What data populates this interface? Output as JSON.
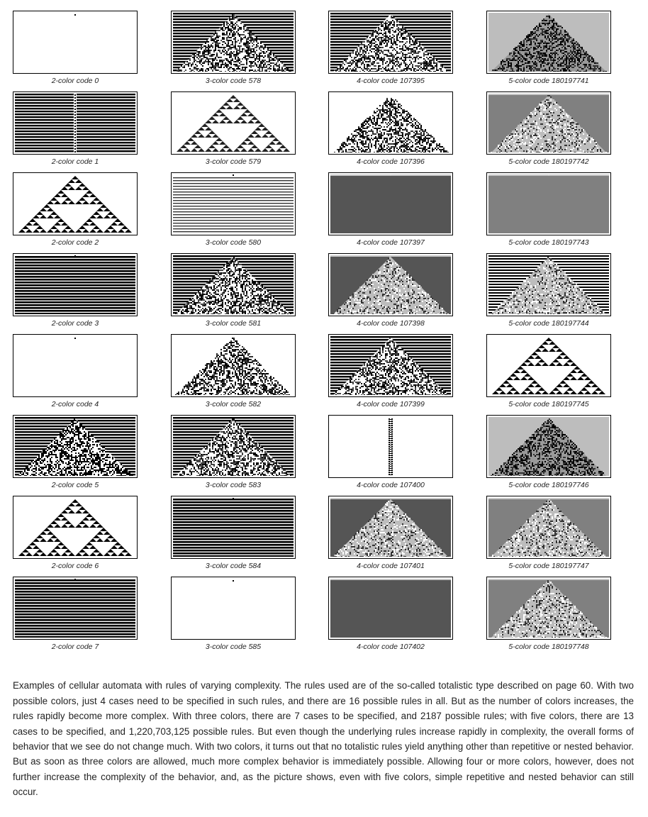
{
  "figure": {
    "columns": [
      {
        "colors": 2,
        "panels": [
          {
            "label": "2-color code 0",
            "pattern": "dot",
            "background": "white"
          },
          {
            "label": "2-color code 1",
            "pattern": "stripes-gap",
            "background": "white"
          },
          {
            "label": "2-color code 2",
            "pattern": "nested",
            "background": "white"
          },
          {
            "label": "2-color code 3",
            "pattern": "stripes-thick",
            "background": "white"
          },
          {
            "label": "2-color code 4",
            "pattern": "dot",
            "background": "white"
          },
          {
            "label": "2-color code 5",
            "pattern": "stripes-triangle",
            "background": "white"
          },
          {
            "label": "2-color code 6",
            "pattern": "nested",
            "background": "white"
          },
          {
            "label": "2-color code 7",
            "pattern": "stripes-thick",
            "background": "white"
          }
        ]
      },
      {
        "colors": 3,
        "panels": [
          {
            "label": "3-color code 578",
            "pattern": "stripes-complex",
            "background": "white"
          },
          {
            "label": "3-color code 579",
            "pattern": "nested-gray",
            "background": "white"
          },
          {
            "label": "3-color code 580",
            "pattern": "stripes-thin",
            "background": "white"
          },
          {
            "label": "3-color code 581",
            "pattern": "stripes-complex",
            "background": "white"
          },
          {
            "label": "3-color code 582",
            "pattern": "complex",
            "background": "white"
          },
          {
            "label": "3-color code 583",
            "pattern": "stripes-complex",
            "background": "white"
          },
          {
            "label": "3-color code 584",
            "pattern": "stripes-thick",
            "background": "white"
          },
          {
            "label": "3-color code 585",
            "pattern": "dot",
            "background": "white"
          }
        ]
      },
      {
        "colors": 4,
        "panels": [
          {
            "label": "4-color code 107395",
            "pattern": "stripes-complex",
            "background": "white"
          },
          {
            "label": "4-color code 107396",
            "pattern": "complex",
            "background": "white"
          },
          {
            "label": "4-color code 107397",
            "pattern": "solid",
            "background": "dark"
          },
          {
            "label": "4-color code 107398",
            "pattern": "complex-light",
            "background": "dark"
          },
          {
            "label": "4-color code 107399",
            "pattern": "stripes-complex",
            "background": "white"
          },
          {
            "label": "4-color code 107400",
            "pattern": "column",
            "background": "white"
          },
          {
            "label": "4-color code 107401",
            "pattern": "complex-light",
            "background": "dark"
          },
          {
            "label": "4-color code 107402",
            "pattern": "solid",
            "background": "dark"
          }
        ]
      },
      {
        "colors": 5,
        "panels": [
          {
            "label": "5-color code 180197741",
            "pattern": "complex",
            "background": "light"
          },
          {
            "label": "5-color code 180197742",
            "pattern": "complex-light",
            "background": "mid"
          },
          {
            "label": "5-color code 180197743",
            "pattern": "solid",
            "background": "mid"
          },
          {
            "label": "5-color code 180197744",
            "pattern": "complex-light",
            "background": "stripes"
          },
          {
            "label": "5-color code 180197745",
            "pattern": "nested",
            "background": "white"
          },
          {
            "label": "5-color code 180197746",
            "pattern": "complex",
            "background": "light"
          },
          {
            "label": "5-color code 180197747",
            "pattern": "complex-light",
            "background": "mid"
          },
          {
            "label": "5-color code 180197748",
            "pattern": "complex-light",
            "background": "mid"
          }
        ]
      }
    ],
    "palette": {
      "black": "#000000",
      "white": "#ffffff",
      "dark": "#555555",
      "mid": "#808080",
      "light": "#bdbdbd",
      "pale": "#c8c8c8"
    }
  },
  "caption": "Examples of cellular automata with rules of varying complexity. The rules used are of the so-called totalistic type described on page 60. With two possible colors, just 4 cases need to be specified in such rules, and there are 16 possible rules in all. But as the number of colors increases, the rules rapidly become more complex. With three colors, there are 7 cases to be specified, and 2187 possible rules; with five colors, there are 13 cases to be specified, and 1,220,703,125 possible rules. But even though the underlying rules increase rapidly in complexity, the overall forms of behavior that we see do not change much. With two colors, it turns out that no totalistic rules yield anything other than repetitive or nested behavior. But as soon as three colors are allowed, much more complex behavior is immediately possible. Allowing four or more colors, however, does not further increase the complexity of the behavior, and, as the picture shows, even with five colors, simple repetitive and nested behavior can still occur."
}
